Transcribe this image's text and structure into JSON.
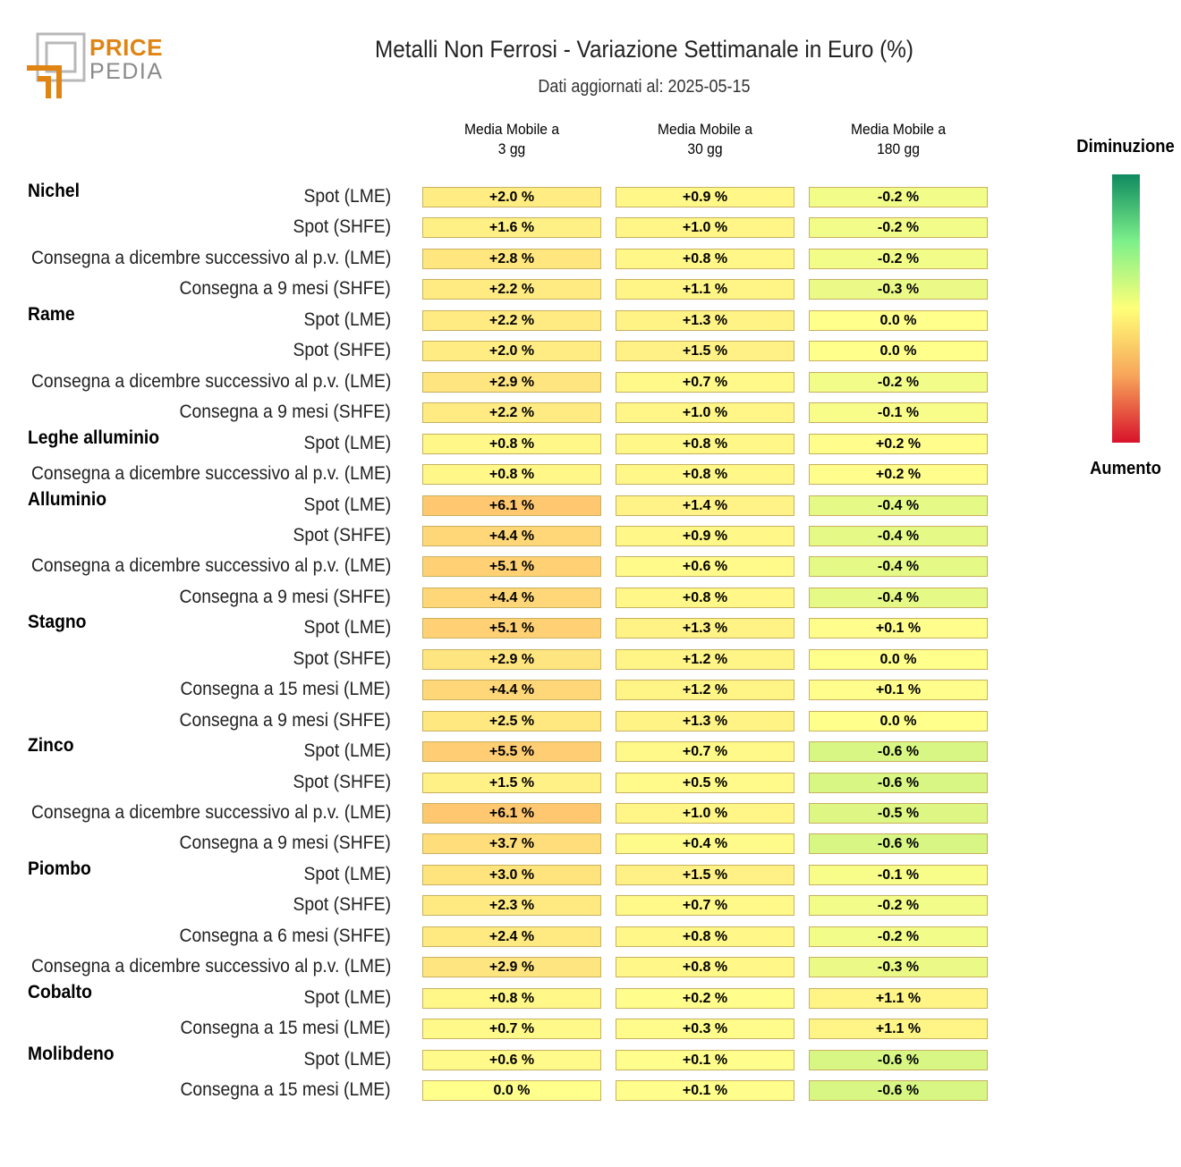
{
  "header": {
    "title": "Metalli Non Ferrosi - Variazione Settimanale in Euro (%)",
    "subtitle": "Dati aggiornati al: 2025-05-15",
    "logo_text_top": "PRICE",
    "logo_text_bottom": "PEDIA"
  },
  "legend": {
    "top_label": "Diminuzione",
    "bottom_label": "Aumento",
    "colors": [
      "#0f8a5f",
      "#7df08a",
      "#ffff78",
      "#f7a55a",
      "#d8122b"
    ]
  },
  "chart_data": {
    "type": "heatmap",
    "title": "Metalli Non Ferrosi - Variazione Settimanale in Euro (%)",
    "subtitle": "Dati aggiornati al: 2025-05-15",
    "columns": [
      "Media Mobile a\n3 gg",
      "Media Mobile a\n30 gg",
      "Media Mobile a\n180 gg"
    ],
    "unit": "%",
    "groups": [
      {
        "name": "Nichel",
        "rows": [
          {
            "label": "Spot (LME)",
            "values": [
              2.0,
              0.9,
              -0.2
            ]
          },
          {
            "label": "Spot (SHFE)",
            "values": [
              1.6,
              1.0,
              -0.2
            ]
          },
          {
            "label": "Consegna a dicembre successivo al p.v. (LME)",
            "values": [
              2.8,
              0.8,
              -0.2
            ]
          },
          {
            "label": "Consegna a 9 mesi (SHFE)",
            "values": [
              2.2,
              1.1,
              -0.3
            ]
          }
        ]
      },
      {
        "name": "Rame",
        "rows": [
          {
            "label": "Spot (LME)",
            "values": [
              2.2,
              1.3,
              0.0
            ]
          },
          {
            "label": "Spot (SHFE)",
            "values": [
              2.0,
              1.5,
              0.0
            ]
          },
          {
            "label": "Consegna a dicembre successivo al p.v. (LME)",
            "values": [
              2.9,
              0.7,
              -0.2
            ]
          },
          {
            "label": "Consegna a 9 mesi (SHFE)",
            "values": [
              2.2,
              1.0,
              -0.1
            ]
          }
        ]
      },
      {
        "name": "Leghe alluminio",
        "rows": [
          {
            "label": "Spot (LME)",
            "values": [
              0.8,
              0.8,
              0.2
            ]
          },
          {
            "label": "Consegna a dicembre successivo al p.v. (LME)",
            "values": [
              0.8,
              0.8,
              0.2
            ]
          }
        ]
      },
      {
        "name": "Alluminio",
        "rows": [
          {
            "label": "Spot (LME)",
            "values": [
              6.1,
              1.4,
              -0.4
            ]
          },
          {
            "label": "Spot (SHFE)",
            "values": [
              4.4,
              0.9,
              -0.4
            ]
          },
          {
            "label": "Consegna a dicembre successivo al p.v. (LME)",
            "values": [
              5.1,
              0.6,
              -0.4
            ]
          },
          {
            "label": "Consegna a 9 mesi (SHFE)",
            "values": [
              4.4,
              0.8,
              -0.4
            ]
          }
        ]
      },
      {
        "name": "Stagno",
        "rows": [
          {
            "label": "Spot (LME)",
            "values": [
              5.1,
              1.3,
              0.1
            ]
          },
          {
            "label": "Spot (SHFE)",
            "values": [
              2.9,
              1.2,
              0.0
            ]
          },
          {
            "label": "Consegna a 15 mesi (LME)",
            "values": [
              4.4,
              1.2,
              0.1
            ]
          },
          {
            "label": "Consegna a 9 mesi (SHFE)",
            "values": [
              2.5,
              1.3,
              0.0
            ]
          }
        ]
      },
      {
        "name": "Zinco",
        "rows": [
          {
            "label": "Spot (LME)",
            "values": [
              5.5,
              0.7,
              -0.6
            ]
          },
          {
            "label": "Spot (SHFE)",
            "values": [
              1.5,
              0.5,
              -0.6
            ]
          },
          {
            "label": "Consegna a dicembre successivo al p.v. (LME)",
            "values": [
              6.1,
              1.0,
              -0.5
            ]
          },
          {
            "label": "Consegna a 9 mesi (SHFE)",
            "values": [
              3.7,
              0.4,
              -0.6
            ]
          }
        ]
      },
      {
        "name": "Piombo",
        "rows": [
          {
            "label": "Spot (LME)",
            "values": [
              3.0,
              1.5,
              -0.1
            ]
          },
          {
            "label": "Spot (SHFE)",
            "values": [
              2.3,
              0.7,
              -0.2
            ]
          },
          {
            "label": "Consegna a 6 mesi (SHFE)",
            "values": [
              2.4,
              0.8,
              -0.2
            ]
          },
          {
            "label": "Consegna a dicembre successivo al p.v. (LME)",
            "values": [
              2.9,
              0.8,
              -0.3
            ]
          }
        ]
      },
      {
        "name": "Cobalto",
        "rows": [
          {
            "label": "Spot (LME)",
            "values": [
              0.8,
              0.2,
              1.1
            ]
          },
          {
            "label": "Consegna a 15 mesi (LME)",
            "values": [
              0.7,
              0.3,
              1.1
            ]
          }
        ]
      },
      {
        "name": "Molibdeno",
        "rows": [
          {
            "label": "Spot (LME)",
            "values": [
              0.6,
              0.1,
              -0.6
            ]
          },
          {
            "label": "Consegna a 15 mesi (LME)",
            "values": [
              0.0,
              0.1,
              -0.6
            ]
          }
        ]
      }
    ]
  }
}
